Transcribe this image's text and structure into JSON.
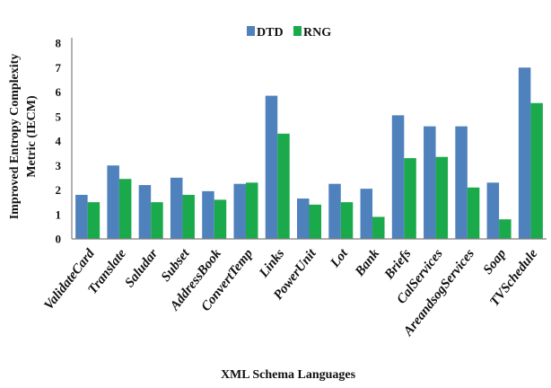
{
  "chart_data": {
    "type": "bar",
    "title": "",
    "xlabel": "XML Schema Languages",
    "ylabel": "Improved Entropy Complexity Metric (IECM)",
    "ylim": [
      0,
      8
    ],
    "yticks": [
      "0",
      "1",
      "2",
      "3",
      "4",
      "5",
      "6",
      "7",
      "8"
    ],
    "grid": false,
    "legend_position": "top-center",
    "categories": [
      "ValidateCard",
      "Translate",
      "Saludar",
      "Subset",
      "AddressBook",
      "ConvertTemp",
      "Links",
      "PowerUnit",
      "Lot",
      "Bank",
      "Briefs",
      "CalServices",
      "AreandsogServices",
      "Soap",
      "TVSchedule"
    ],
    "series": [
      {
        "name": "DTD",
        "color": "#4f81bd",
        "values": [
          1.8,
          3.0,
          2.2,
          2.5,
          1.95,
          2.25,
          5.85,
          1.65,
          2.25,
          2.05,
          5.05,
          4.6,
          4.6,
          2.3,
          7.0
        ]
      },
      {
        "name": "RNG",
        "color": "#1aaa4b",
        "values": [
          1.5,
          2.45,
          1.5,
          1.8,
          1.6,
          2.3,
          4.3,
          1.4,
          1.5,
          0.9,
          3.3,
          3.35,
          2.1,
          0.8,
          5.55
        ]
      }
    ]
  }
}
